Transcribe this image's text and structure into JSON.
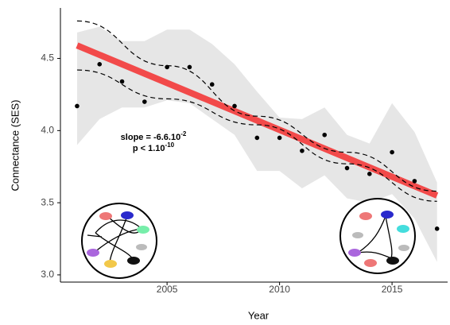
{
  "chart_data": {
    "type": "scatter",
    "xlabel": "Year",
    "ylabel": "Connectance (SES)",
    "xlim": [
      2000.26,
      2017.47
    ],
    "ylim": [
      2.95,
      4.85
    ],
    "xticks": [
      2005,
      2010,
      2015
    ],
    "yticks": [
      {
        "value": 3,
        "label": "3.0"
      },
      {
        "value": 3.5,
        "label": "3.5"
      },
      {
        "value": 4,
        "label": "4.0"
      },
      {
        "value": 4.5,
        "label": "4.5"
      }
    ],
    "x": [
      2001,
      2002,
      2003,
      2004,
      2005,
      2006,
      2007,
      2008,
      2009,
      2010,
      2011,
      2012,
      2013,
      2014,
      2015,
      2016,
      2017
    ],
    "values": [
      4.17,
      4.46,
      4.34,
      4.2,
      4.44,
      4.44,
      4.32,
      4.17,
      3.95,
      3.95,
      3.86,
      3.97,
      3.74,
      3.7,
      3.85,
      3.65,
      3.32
    ],
    "color": "#000000",
    "envelope": {
      "color": "#e6e6e6",
      "upper": [
        4.68,
        4.72,
        4.62,
        4.62,
        4.7,
        4.7,
        4.6,
        4.46,
        4.27,
        4.09,
        4.08,
        4.16,
        3.97,
        3.91,
        4.19,
        3.99,
        3.64
      ],
      "lower": [
        3.9,
        4.08,
        4.16,
        4.16,
        4.21,
        4.19,
        4.08,
        3.97,
        3.72,
        3.72,
        3.6,
        3.69,
        3.53,
        3.5,
        3.56,
        3.39,
        3.09
      ]
    },
    "regression": {
      "color": "#f24a4a",
      "x": [
        2001,
        2017
      ],
      "values": [
        4.59,
        3.55
      ]
    },
    "confidence": {
      "x": [
        2001,
        2005,
        2009,
        2013,
        2017
      ],
      "upper": [
        4.76,
        4.45,
        4.1,
        3.85,
        3.58
      ],
      "lower": [
        4.42,
        4.22,
        4.04,
        3.77,
        3.51
      ]
    },
    "annotations": [
      {
        "text": "slope = -6.6.10",
        "sup": "-2"
      },
      {
        "text": "p < 1.10",
        "sup": "-10"
      }
    ]
  }
}
